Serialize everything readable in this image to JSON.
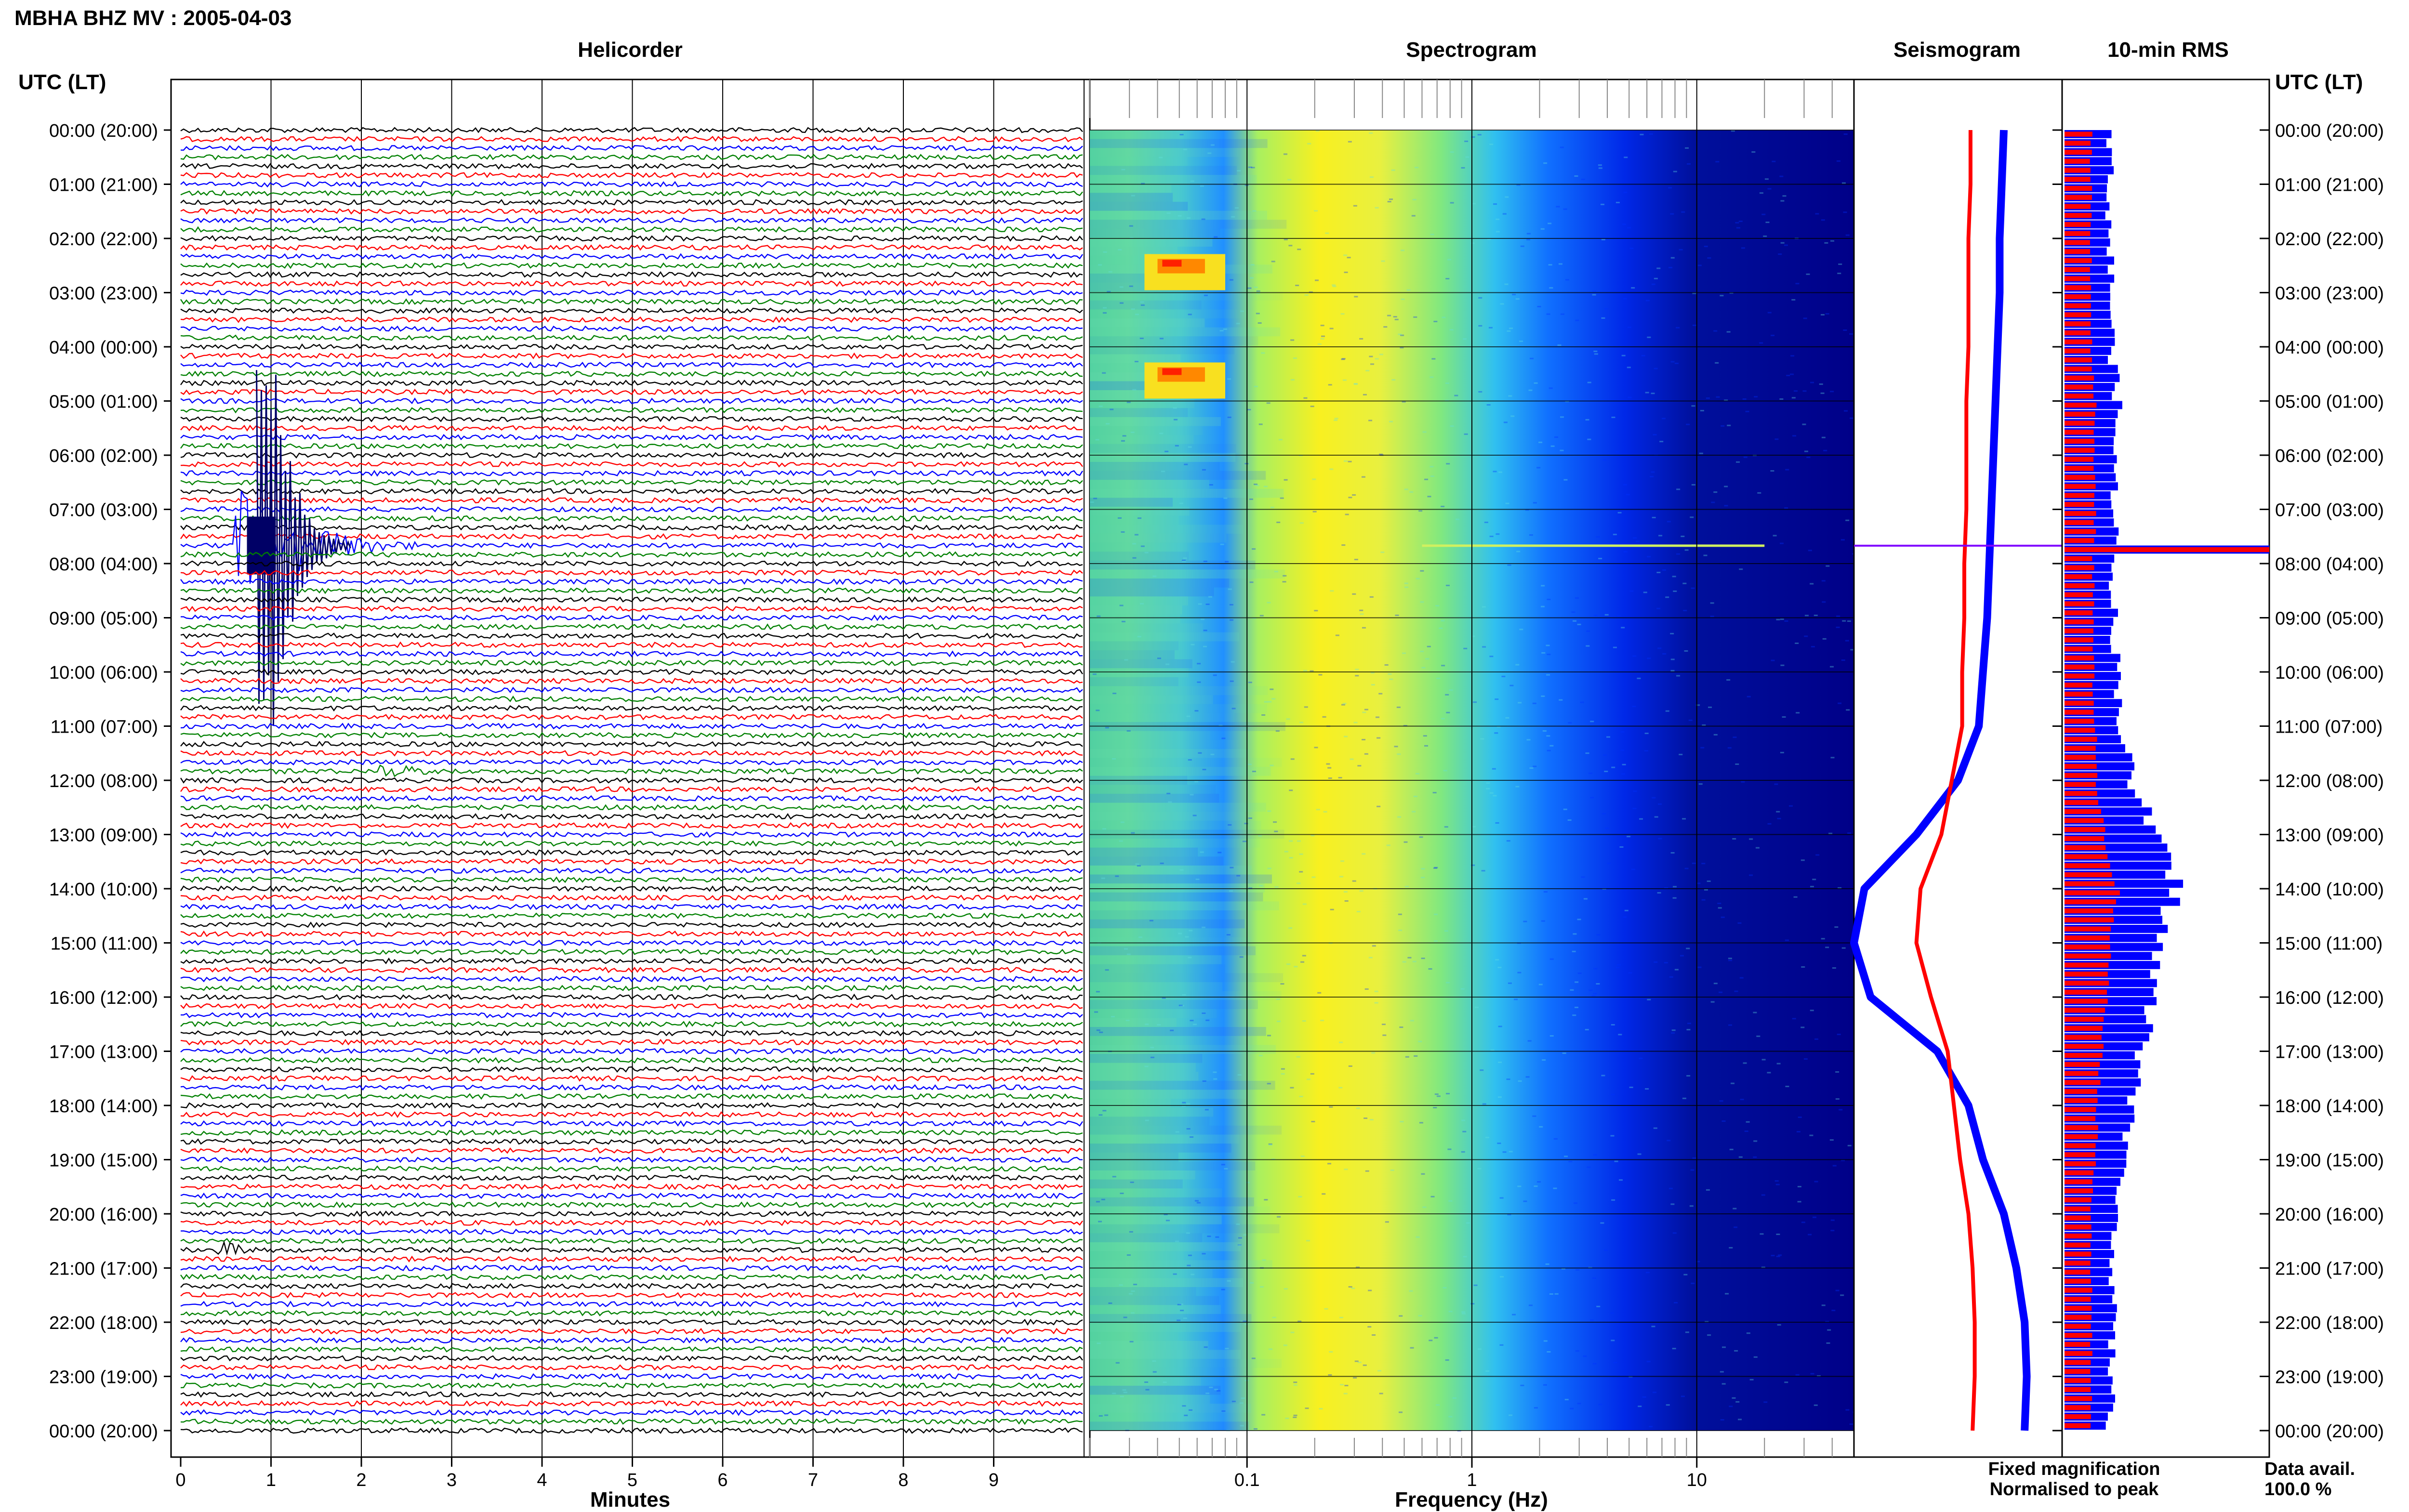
{
  "title": "MBHA BHZ MV : 2005-04-03",
  "panels": {
    "helicorder": "Helicorder",
    "spectrogram": "Spectrogram",
    "seismogram": "Seismogram",
    "rms": "10-min RMS"
  },
  "axis_title_left": "UTC (LT)",
  "axis_title_right": "UTC (LT)",
  "xlabel_helicorder": "Minutes",
  "xlabel_spectrogram": "Frequency (Hz)",
  "legend": {
    "fixed": "Fixed magnification",
    "normalised": "Normalised to peak",
    "fixed_color": "#0000ff",
    "normalised_color": "#ff0000"
  },
  "data_avail_label": "Data avail.",
  "data_avail_value": "100.0 %",
  "chart_data": [
    {
      "type": "line",
      "panel": "Helicorder",
      "xlabel": "Minutes",
      "xlim": [
        0,
        10
      ],
      "x_ticks": [
        "0",
        "1",
        "2",
        "3",
        "4",
        "5",
        "6",
        "7",
        "8",
        "9"
      ],
      "y_tick_labels": [
        "00:00 (20:00)",
        "01:00 (21:00)",
        "02:00 (22:00)",
        "03:00 (23:00)",
        "04:00 (00:00)",
        "05:00 (01:00)",
        "06:00 (02:00)",
        "07:00 (03:00)",
        "08:00 (04:00)",
        "09:00 (05:00)",
        "10:00 (06:00)",
        "11:00 (07:00)",
        "12:00 (08:00)",
        "13:00 (09:00)",
        "14:00 (10:00)",
        "15:00 (11:00)",
        "16:00 (12:00)",
        "17:00 (13:00)",
        "18:00 (14:00)",
        "19:00 (15:00)",
        "20:00 (16:00)",
        "21:00 (17:00)",
        "22:00 (18:00)",
        "23:00 (19:00)",
        "00:00 (20:00)"
      ],
      "trace_colors": [
        "#000000",
        "#ff0000",
        "#0000ff",
        "#008000"
      ],
      "events": [
        {
          "utc": "07:40",
          "minute": 0.6,
          "end_minute": 2.6,
          "amplitude": "large"
        },
        {
          "utc": "11:50",
          "minute": 2.2,
          "end_minute": 2.8,
          "amplitude": "small"
        },
        {
          "utc": "20:40",
          "minute": 0.4,
          "end_minute": 1.0,
          "amplitude": "small"
        }
      ]
    },
    {
      "type": "heatmap",
      "panel": "Spectrogram",
      "xlabel": "Frequency (Hz)",
      "x_scale": "log",
      "xlim": [
        0.02,
        50
      ],
      "x_tick_labels": [
        "0.1",
        "1",
        "10"
      ],
      "colormap": [
        "#00008c",
        "#0000ff",
        "#00a0ff",
        "#40e0d0",
        "#a0f070",
        "#ffff00",
        "#ffa000",
        "#ff0000"
      ],
      "dominant_band_hz": [
        0.15,
        0.35
      ]
    },
    {
      "type": "line",
      "panel": "Seismogram",
      "series": [
        {
          "name": "Fixed magnification",
          "color": "#0000ff",
          "values": [
            0.72,
            0.71,
            0.7,
            0.7,
            0.69,
            0.68,
            0.67,
            0.66,
            0.65,
            0.64,
            0.62,
            0.6,
            0.5,
            0.3,
            0.05,
            0.0,
            0.08,
            0.4,
            0.55,
            0.62,
            0.72,
            0.78,
            0.82,
            0.83,
            0.82
          ]
        },
        {
          "name": "Normalised to peak",
          "color": "#ff0000",
          "values": [
            0.56,
            0.56,
            0.55,
            0.55,
            0.55,
            0.54,
            0.54,
            0.54,
            0.53,
            0.53,
            0.52,
            0.52,
            0.47,
            0.42,
            0.32,
            0.3,
            0.37,
            0.45,
            0.48,
            0.51,
            0.55,
            0.57,
            0.58,
            0.58,
            0.57
          ]
        }
      ],
      "spike_utc": "07:40"
    },
    {
      "type": "bar",
      "panel": "10-min RMS",
      "orientation": "horizontal",
      "series": [
        {
          "name": "Normalised to peak",
          "color": "#ff0000",
          "hourly_values": [
            0.13,
            0.13,
            0.13,
            0.13,
            0.13,
            0.15,
            0.14,
            0.15,
            0.14,
            0.14,
            0.14,
            0.15,
            0.16,
            0.2,
            0.26,
            0.22,
            0.21,
            0.18,
            0.16,
            0.15,
            0.13,
            0.13,
            0.13,
            0.13,
            0.13
          ]
        },
        {
          "name": "Fixed magnification",
          "color": "#0000ff",
          "hourly_values": [
            0.22,
            0.22,
            0.22,
            0.23,
            0.23,
            0.26,
            0.24,
            0.25,
            0.24,
            0.24,
            0.26,
            0.28,
            0.33,
            0.45,
            0.55,
            0.45,
            0.42,
            0.38,
            0.33,
            0.28,
            0.25,
            0.24,
            0.23,
            0.23,
            0.22
          ]
        }
      ],
      "spike": {
        "utc": "07:40",
        "value": 1.0
      }
    }
  ]
}
